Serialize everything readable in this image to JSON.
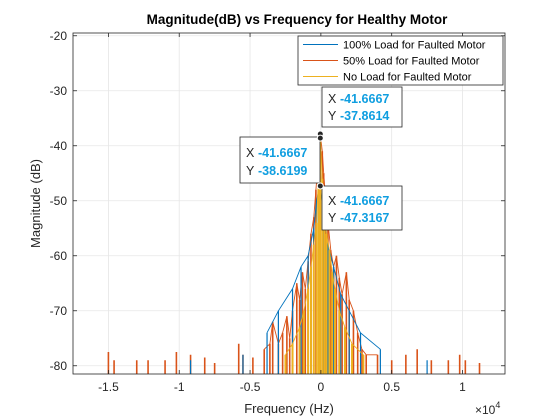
{
  "colors": {
    "series_100": "#0072bd",
    "series_50": "#d95319",
    "series_no": "#edb120",
    "grid": "#e6e6e6",
    "axis": "#262626",
    "tip_value": "#0f9ee0"
  },
  "chart_data": {
    "type": "line",
    "title": "Magnitude(dB) vs Frequency for Healthy Motor",
    "xlabel": "Frequency (Hz)",
    "ylabel": "Magnitude (dB)",
    "x_exponent_label": "×10",
    "x_exponent_power": "4",
    "xlim": [
      -1.75,
      1.3
    ],
    "ylim": [
      -81.5,
      -19.5
    ],
    "baseline": -81.5,
    "x_ticks": [
      -1.5,
      -1,
      -0.5,
      0,
      0.5,
      1
    ],
    "x_tick_labels": [
      "-1.5",
      "-1",
      "-0.5",
      "0",
      "0.5",
      "1"
    ],
    "y_ticks": [
      -80,
      -70,
      -60,
      -50,
      -40,
      -30,
      -20
    ],
    "y_tick_labels": [
      "-80",
      "-70",
      "-60",
      "-50",
      "-40",
      "-30",
      "-20"
    ],
    "grid": true,
    "legend_position": "top-right",
    "series": [
      {
        "name": "100% Load for Faulted Motor",
        "color": "#0072bd",
        "peaks": [
          [
            -0.92,
            -79
          ],
          [
            -0.55,
            -78
          ],
          [
            -0.38,
            -74
          ],
          [
            -0.3,
            -70
          ],
          [
            -0.2,
            -66
          ],
          [
            -0.14,
            -62
          ],
          [
            -0.09,
            -60
          ],
          [
            -0.05,
            -55
          ],
          [
            -0.03,
            -50
          ],
          [
            -0.01,
            -47.3
          ],
          [
            0.02,
            -52
          ],
          [
            0.05,
            -58
          ],
          [
            0.09,
            -62
          ],
          [
            0.14,
            -67
          ],
          [
            0.2,
            -70
          ],
          [
            0.28,
            -74
          ],
          [
            0.42,
            -77
          ],
          [
            0.75,
            -79
          ]
        ]
      },
      {
        "name": "50% Load for Faulted Motor",
        "color": "#d95319",
        "peaks": [
          [
            -1.5,
            -77.5
          ],
          [
            -1.46,
            -79
          ],
          [
            -1.3,
            -79
          ],
          [
            -1.22,
            -79
          ],
          [
            -1.1,
            -79
          ],
          [
            -1.02,
            -77.5
          ],
          [
            -0.92,
            -78
          ],
          [
            -0.82,
            -78.5
          ],
          [
            -0.75,
            -79.5
          ],
          [
            -0.58,
            -76
          ],
          [
            -0.55,
            -78
          ],
          [
            -0.48,
            -78.5
          ],
          [
            -0.4,
            -77
          ],
          [
            -0.36,
            -76
          ],
          [
            -0.34,
            -72
          ],
          [
            -0.3,
            -76
          ],
          [
            -0.27,
            -74
          ],
          [
            -0.24,
            -71
          ],
          [
            -0.22,
            -75
          ],
          [
            -0.2,
            -70
          ],
          [
            -0.17,
            -65
          ],
          [
            -0.15,
            -68
          ],
          [
            -0.13,
            -63
          ],
          [
            -0.11,
            -66
          ],
          [
            -0.09,
            -61
          ],
          [
            -0.07,
            -56
          ],
          [
            -0.05,
            -53
          ],
          [
            -0.035,
            -48
          ],
          [
            -0.015,
            -42
          ],
          [
            -0.005,
            -37.9
          ],
          [
            0.01,
            -41
          ],
          [
            0.02,
            -45
          ],
          [
            0.035,
            -50
          ],
          [
            0.05,
            -54
          ],
          [
            0.07,
            -59
          ],
          [
            0.09,
            -62
          ],
          [
            0.11,
            -60
          ],
          [
            0.13,
            -64
          ],
          [
            0.15,
            -67
          ],
          [
            0.18,
            -63
          ],
          [
            0.2,
            -68
          ],
          [
            0.23,
            -70
          ],
          [
            0.26,
            -74
          ],
          [
            0.29,
            -77
          ],
          [
            0.32,
            -78
          ],
          [
            0.4,
            -78
          ],
          [
            0.5,
            -79
          ],
          [
            0.6,
            -78
          ],
          [
            0.68,
            -77
          ],
          [
            0.78,
            -79
          ],
          [
            0.9,
            -79
          ],
          [
            0.98,
            -78
          ],
          [
            1.02,
            -79
          ],
          [
            1.12,
            -79.5
          ]
        ]
      },
      {
        "name": "No Load for Faulted Motor",
        "color": "#edb120",
        "peaks": [
          [
            -0.25,
            -78
          ],
          [
            -0.2,
            -76
          ],
          [
            -0.15,
            -73
          ],
          [
            -0.12,
            -70
          ],
          [
            -0.09,
            -66
          ],
          [
            -0.07,
            -62
          ],
          [
            -0.05,
            -58
          ],
          [
            -0.03,
            -54
          ],
          [
            -0.015,
            -44
          ],
          [
            -0.005,
            -38.6
          ],
          [
            0.01,
            -46
          ],
          [
            0.025,
            -52
          ],
          [
            0.04,
            -56
          ],
          [
            0.06,
            -59
          ],
          [
            0.08,
            -63
          ],
          [
            0.1,
            -66
          ],
          [
            0.13,
            -70
          ],
          [
            0.17,
            -73
          ],
          [
            0.22,
            -76
          ],
          [
            0.3,
            -78
          ]
        ]
      }
    ],
    "data_tips": [
      {
        "x_label": "X",
        "x_value": "-41.6667",
        "y_label": "Y",
        "y_value": "-37.8614",
        "x": -0.004,
        "y": -37.86
      },
      {
        "x_label": "X",
        "x_value": "-41.6667",
        "y_label": "Y",
        "y_value": "-38.6199",
        "x": -0.004,
        "y": -38.62
      },
      {
        "x_label": "X",
        "x_value": "-41.6667",
        "y_label": "Y",
        "y_value": "-47.3167",
        "x": -0.004,
        "y": -47.32
      }
    ]
  }
}
